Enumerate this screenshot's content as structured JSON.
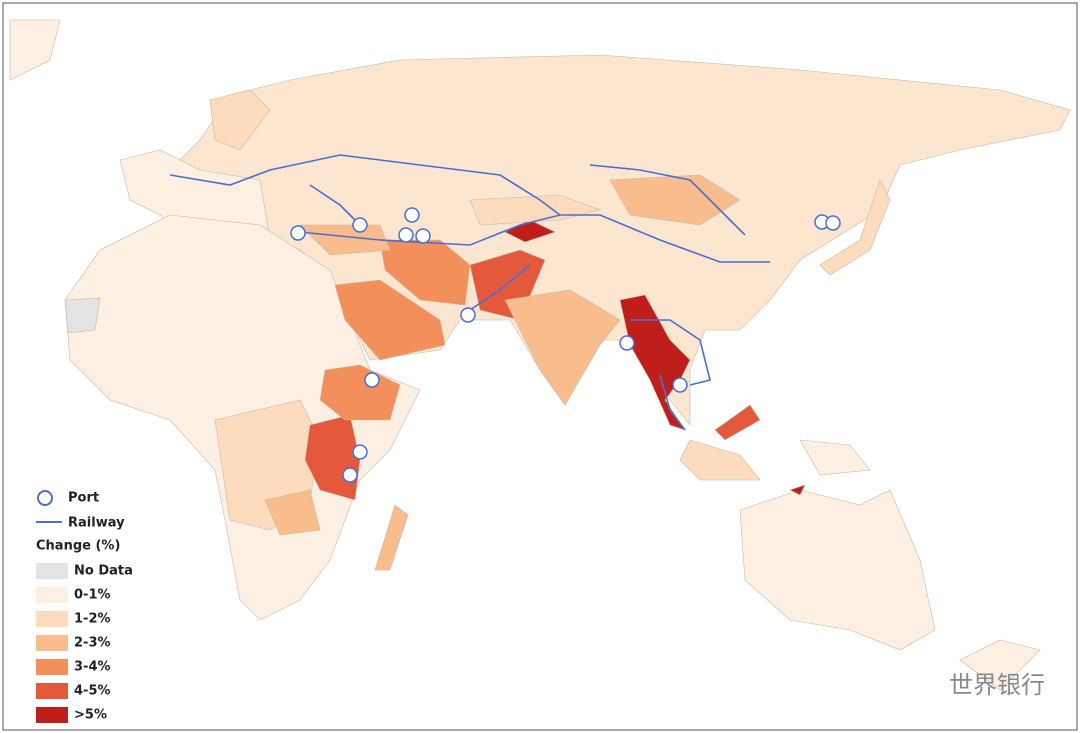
{
  "legend": {
    "port": "Port",
    "railway": "Railway",
    "title": "Change (%)",
    "items": [
      {
        "label": "No Data",
        "color": "#e3e3e3"
      },
      {
        "label": "0-1%",
        "color": "#fdf0e2"
      },
      {
        "label": "1-2%",
        "color": "#fcdcbc"
      },
      {
        "label": "2-3%",
        "color": "#f9bc8c"
      },
      {
        "label": "3-4%",
        "color": "#f38f5a"
      },
      {
        "label": "4-5%",
        "color": "#e4593c"
      },
      {
        "label": ">5%",
        "color": "#c01e1b"
      }
    ]
  },
  "watermark": "世界银行"
}
